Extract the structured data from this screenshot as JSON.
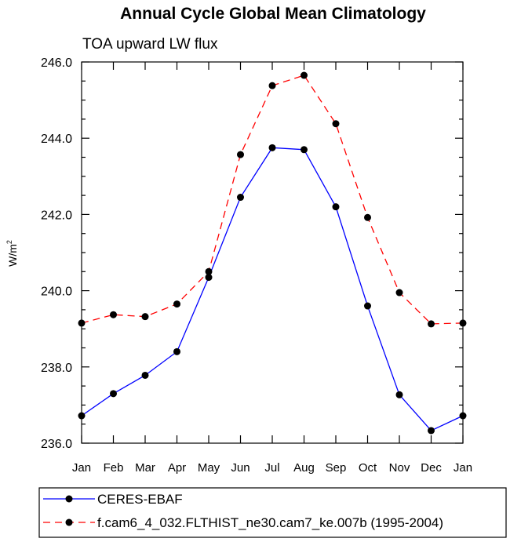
{
  "chart_data": {
    "type": "line",
    "title": "Annual Cycle Global Mean Climatology",
    "subtitle": "TOA upward LW flux",
    "ylabel": "W/m",
    "ylabel_sup": "2",
    "xlabel": "",
    "categories": [
      "Jan",
      "Feb",
      "Mar",
      "Apr",
      "May",
      "Jun",
      "Jul",
      "Aug",
      "Sep",
      "Oct",
      "Nov",
      "Dec",
      "Jan"
    ],
    "ylim": [
      236.0,
      246.0
    ],
    "yticks": [
      236.0,
      238.0,
      240.0,
      242.0,
      244.0,
      246.0
    ],
    "ytick_labels": [
      "236.0",
      "238.0",
      "240.0",
      "242.0",
      "244.0",
      "246.0"
    ],
    "grid": false,
    "legend_position": "bottom",
    "series": [
      {
        "name": "CERES-EBAF",
        "color": "#0000ff",
        "dash": "solid",
        "marker_color": "#000000",
        "values": [
          236.72,
          237.3,
          237.78,
          238.4,
          240.35,
          242.45,
          243.75,
          243.7,
          242.2,
          239.6,
          237.27,
          236.33,
          236.72
        ]
      },
      {
        "name": "f.cam6_4_032.FLTHIST_ne30.cam7_ke.007b (1995-2004)",
        "color": "#ff0000",
        "dash": "dashed",
        "marker_color": "#000000",
        "values": [
          239.15,
          239.37,
          239.32,
          239.65,
          240.5,
          243.57,
          245.38,
          245.65,
          244.38,
          241.92,
          239.95,
          239.13,
          239.15
        ]
      }
    ]
  }
}
